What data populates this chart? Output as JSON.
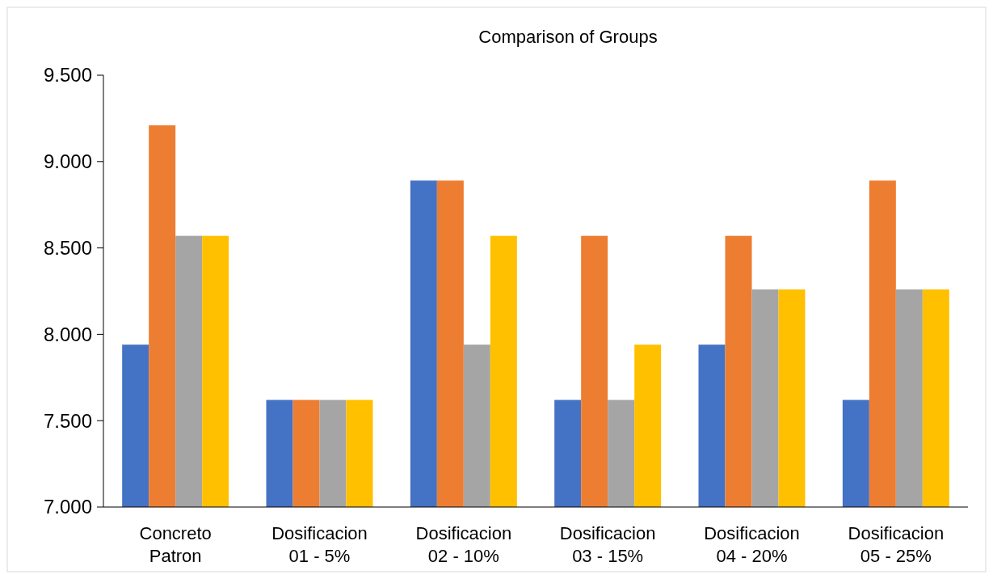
{
  "chart_data": {
    "type": "bar",
    "title": "Comparison of Groups",
    "categories": [
      "Concreto Patron",
      "Dosificacion 01 - 5%",
      "Dosificacion 02 - 10%",
      "Dosificacion 03 - 15%",
      "Dosificacion 04 - 20%",
      "Dosificacion 05 - 25%"
    ],
    "series": [
      {
        "color": "#4472c4",
        "values": [
          7.94,
          7.62,
          8.89,
          7.62,
          7.94,
          7.62
        ]
      },
      {
        "color": "#ed7d31",
        "values": [
          9.21,
          7.62,
          8.89,
          8.57,
          8.57,
          8.89
        ]
      },
      {
        "color": "#a5a5a5",
        "values": [
          8.57,
          7.62,
          7.94,
          7.62,
          8.26,
          8.26
        ]
      },
      {
        "color": "#ffc000",
        "values": [
          8.57,
          7.62,
          8.57,
          7.94,
          8.26,
          8.26
        ]
      }
    ],
    "ylim": [
      7,
      9.5
    ],
    "yticks": [
      {
        "value": 7,
        "label": "7.000"
      },
      {
        "value": 7.5,
        "label": "7.500"
      },
      {
        "value": 8,
        "label": "8.000"
      },
      {
        "value": 8.5,
        "label": "8.500"
      },
      {
        "value": 9,
        "label": "9.000"
      },
      {
        "value": 9.5,
        "label": "9.500"
      }
    ],
    "grid": false
  }
}
